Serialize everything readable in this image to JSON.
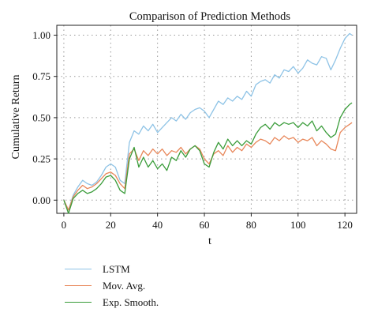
{
  "chart_data": {
    "type": "line",
    "title": "Comparison of Prediction Methods",
    "xlabel": "t",
    "ylabel": "Cumulative Return",
    "xlim": [
      -3,
      125
    ],
    "ylim": [
      -0.08,
      1.06
    ],
    "xticks": [
      0,
      20,
      40,
      60,
      80,
      100,
      120
    ],
    "yticks": [
      0.0,
      0.25,
      0.5,
      0.75,
      1.0
    ],
    "ytick_labels": [
      "0.00",
      "0.25",
      "0.50",
      "0.75",
      "1.00"
    ],
    "grid": true,
    "legend_position": "bottom-left, below plot",
    "series": [
      {
        "name": "LSTM",
        "color": "#8ec3e6",
        "x": [
          0,
          2,
          4,
          6,
          8,
          10,
          12,
          14,
          16,
          18,
          20,
          22,
          24,
          26,
          28,
          30,
          32,
          34,
          36,
          38,
          40,
          42,
          44,
          46,
          48,
          50,
          52,
          54,
          56,
          58,
          60,
          62,
          64,
          66,
          68,
          70,
          72,
          74,
          76,
          78,
          80,
          82,
          84,
          86,
          88,
          90,
          92,
          94,
          96,
          98,
          100,
          102,
          104,
          106,
          108,
          110,
          112,
          114,
          116,
          118,
          120,
          122,
          123
        ],
        "y": [
          0.0,
          -0.06,
          0.03,
          0.08,
          0.12,
          0.1,
          0.09,
          0.11,
          0.15,
          0.2,
          0.22,
          0.2,
          0.12,
          0.1,
          0.35,
          0.42,
          0.4,
          0.45,
          0.42,
          0.46,
          0.41,
          0.44,
          0.47,
          0.5,
          0.48,
          0.52,
          0.49,
          0.53,
          0.55,
          0.56,
          0.54,
          0.5,
          0.55,
          0.6,
          0.58,
          0.62,
          0.6,
          0.63,
          0.61,
          0.66,
          0.63,
          0.7,
          0.72,
          0.73,
          0.71,
          0.76,
          0.74,
          0.79,
          0.78,
          0.81,
          0.77,
          0.8,
          0.85,
          0.83,
          0.82,
          0.87,
          0.86,
          0.79,
          0.85,
          0.92,
          0.98,
          1.01,
          1.0
        ]
      },
      {
        "name": "Mov. Avg.",
        "color": "#e8875a",
        "x": [
          0,
          2,
          4,
          6,
          8,
          10,
          12,
          14,
          16,
          18,
          20,
          22,
          24,
          26,
          28,
          30,
          32,
          34,
          36,
          38,
          40,
          42,
          44,
          46,
          48,
          50,
          52,
          54,
          56,
          58,
          60,
          62,
          64,
          66,
          68,
          70,
          72,
          74,
          76,
          78,
          80,
          82,
          84,
          86,
          88,
          90,
          92,
          94,
          96,
          98,
          100,
          102,
          104,
          106,
          108,
          110,
          112,
          114,
          116,
          118,
          120,
          122,
          123
        ],
        "y": [
          0.0,
          -0.06,
          0.02,
          0.06,
          0.09,
          0.07,
          0.08,
          0.1,
          0.13,
          0.16,
          0.17,
          0.15,
          0.1,
          0.07,
          0.28,
          0.31,
          0.24,
          0.3,
          0.27,
          0.31,
          0.28,
          0.31,
          0.27,
          0.3,
          0.29,
          0.32,
          0.28,
          0.31,
          0.33,
          0.31,
          0.25,
          0.22,
          0.28,
          0.3,
          0.27,
          0.33,
          0.29,
          0.32,
          0.3,
          0.34,
          0.32,
          0.35,
          0.37,
          0.36,
          0.34,
          0.38,
          0.36,
          0.39,
          0.37,
          0.38,
          0.35,
          0.37,
          0.36,
          0.38,
          0.33,
          0.36,
          0.34,
          0.31,
          0.3,
          0.41,
          0.44,
          0.46,
          0.47
        ]
      },
      {
        "name": "Exp. Smooth.",
        "color": "#3a9c3a",
        "x": [
          0,
          2,
          4,
          6,
          8,
          10,
          12,
          14,
          16,
          18,
          20,
          22,
          24,
          26,
          28,
          30,
          32,
          34,
          36,
          38,
          40,
          42,
          44,
          46,
          48,
          50,
          52,
          54,
          56,
          58,
          60,
          62,
          64,
          66,
          68,
          70,
          72,
          74,
          76,
          78,
          80,
          82,
          84,
          86,
          88,
          90,
          92,
          94,
          96,
          98,
          100,
          102,
          104,
          106,
          108,
          110,
          112,
          114,
          116,
          118,
          120,
          122,
          123
        ],
        "y": [
          0.0,
          -0.08,
          0.01,
          0.04,
          0.06,
          0.04,
          0.05,
          0.07,
          0.1,
          0.14,
          0.15,
          0.12,
          0.06,
          0.04,
          0.25,
          0.32,
          0.2,
          0.26,
          0.2,
          0.24,
          0.19,
          0.22,
          0.18,
          0.26,
          0.24,
          0.3,
          0.26,
          0.31,
          0.33,
          0.3,
          0.22,
          0.2,
          0.29,
          0.35,
          0.31,
          0.37,
          0.33,
          0.36,
          0.33,
          0.36,
          0.34,
          0.4,
          0.44,
          0.46,
          0.43,
          0.47,
          0.45,
          0.47,
          0.46,
          0.47,
          0.44,
          0.47,
          0.45,
          0.48,
          0.42,
          0.45,
          0.41,
          0.38,
          0.4,
          0.5,
          0.55,
          0.58,
          0.59
        ]
      }
    ]
  }
}
